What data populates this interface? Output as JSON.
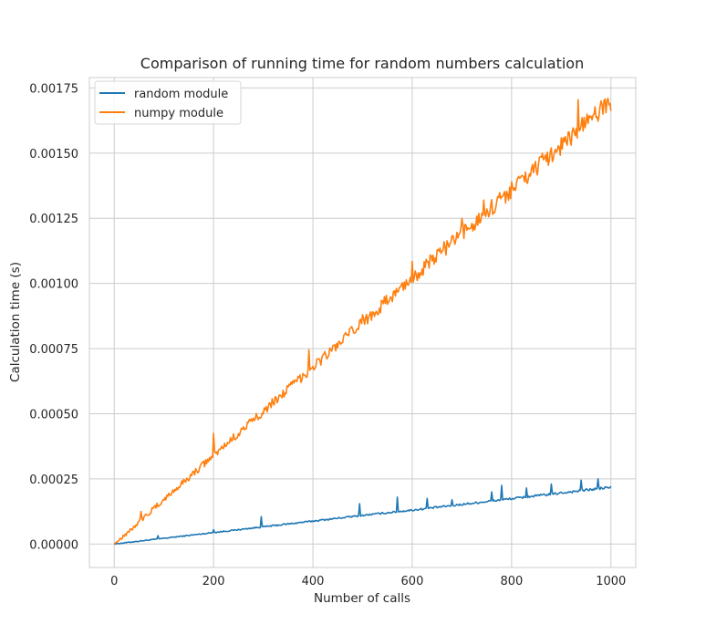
{
  "chart_data": {
    "type": "line",
    "title": "Comparison of running time for random numbers calculation",
    "xlabel": "Number of calls",
    "ylabel": "Calculation time (s)",
    "xlim": [
      -50,
      1050
    ],
    "ylim": [
      -9e-05,
      0.00179
    ],
    "xticks": [
      0,
      200,
      400,
      600,
      800,
      1000
    ],
    "xtick_labels": [
      "0",
      "200",
      "400",
      "600",
      "800",
      "1000"
    ],
    "yticks": [
      0,
      0.00025,
      0.0005,
      0.00075,
      0.001,
      0.00125,
      0.0015,
      0.00175
    ],
    "ytick_labels": [
      "0.00000",
      "0.00025",
      "0.00050",
      "0.00075",
      "0.00100",
      "0.00125",
      "0.00150",
      "0.00175"
    ],
    "grid": true,
    "legend_position": "top-left",
    "series": [
      {
        "name": "random module",
        "color": "#1f77b4",
        "x": [
          0,
          50,
          100,
          150,
          200,
          250,
          300,
          350,
          400,
          450,
          500,
          550,
          600,
          650,
          700,
          750,
          800,
          850,
          900,
          950,
          1000
        ],
        "y": [
          0.0,
          1.1e-05,
          2.2e-05,
          3.3e-05,
          4.4e-05,
          5.5e-05,
          6.6e-05,
          7.7e-05,
          8.8e-05,
          9.9e-05,
          0.00011,
          0.00012,
          0.00013,
          0.000141,
          0.000152,
          0.000163,
          0.000174,
          0.000185,
          0.000196,
          0.000207,
          0.000218
        ],
        "spikes": [
          [
            88,
            3.2e-05
          ],
          [
            200,
            5.5e-05
          ],
          [
            297,
            0.000105
          ],
          [
            495,
            0.000155
          ],
          [
            570,
            0.00018
          ],
          [
            630,
            0.000175
          ],
          [
            680,
            0.00017
          ],
          [
            760,
            0.0002
          ],
          [
            780,
            0.000225
          ],
          [
            830,
            0.000215
          ],
          [
            880,
            0.00023
          ],
          [
            940,
            0.000245
          ],
          [
            975,
            0.00025
          ]
        ]
      },
      {
        "name": "numpy module",
        "color": "#ff7f0e",
        "x": [
          0,
          50,
          100,
          150,
          200,
          250,
          300,
          350,
          400,
          450,
          500,
          550,
          600,
          650,
          700,
          750,
          800,
          850,
          900,
          950,
          1000
        ],
        "y": [
          0.0,
          8.5e-05,
          0.00017,
          0.000255,
          0.00034,
          0.000425,
          0.00051,
          0.000595,
          0.00068,
          0.000765,
          0.00085,
          0.000935,
          0.00102,
          0.001105,
          0.00119,
          0.001275,
          0.00136,
          0.001445,
          0.00153,
          0.001615,
          0.0017
        ],
        "spikes": [
          [
            55,
            0.000125
          ],
          [
            200,
            0.000425
          ],
          [
            392,
            0.000745
          ],
          [
            500,
            0.00088
          ],
          [
            600,
            0.001085
          ],
          [
            665,
            0.00116
          ],
          [
            700,
            0.00125
          ],
          [
            745,
            0.00132
          ],
          [
            800,
            0.00139
          ],
          [
            840,
            0.00144
          ],
          [
            880,
            0.00152
          ],
          [
            935,
            0.001705
          ],
          [
            980,
            0.0017
          ]
        ]
      }
    ]
  }
}
